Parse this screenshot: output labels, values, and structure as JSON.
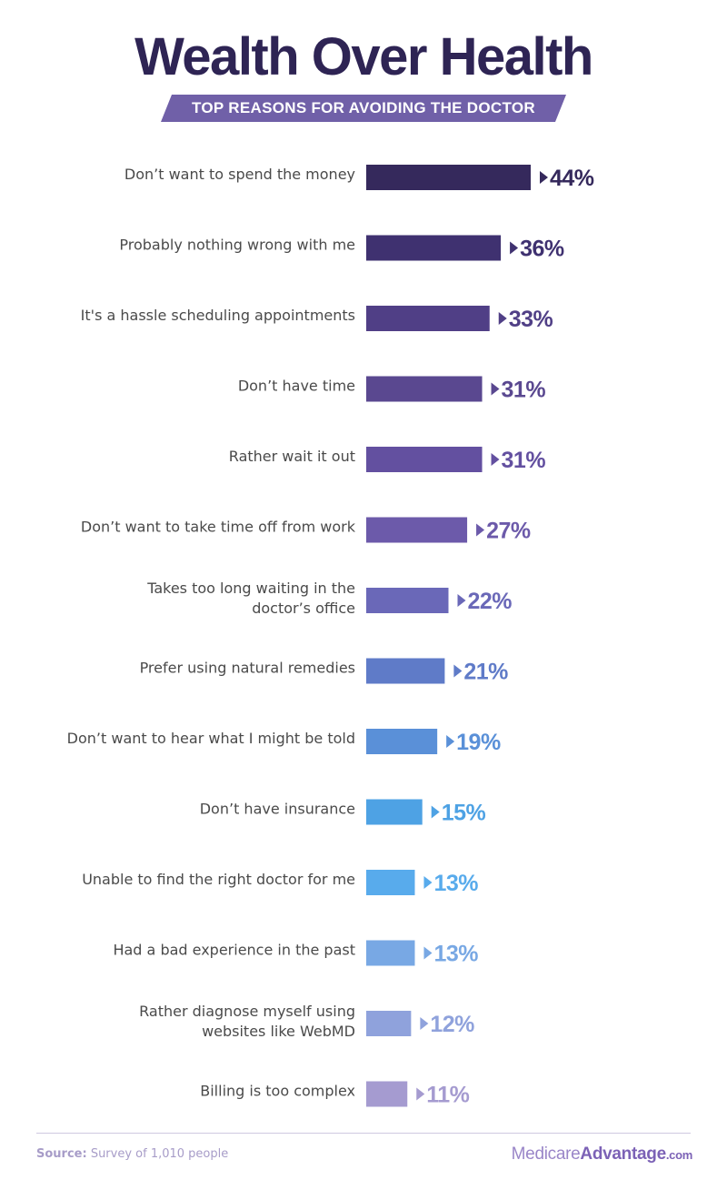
{
  "title": "Wealth Over Health",
  "subtitle": "TOP REASONS FOR AVOIDING THE DOCTOR",
  "chart_data": {
    "type": "bar",
    "orientation": "horizontal",
    "categories": [
      [
        "Don’t want to spend the money"
      ],
      [
        "Probably nothing wrong with me"
      ],
      [
        "It's a hassle scheduling appointments"
      ],
      [
        "Don’t have time"
      ],
      [
        "Rather wait it out"
      ],
      [
        "Don’t want to take time off from work"
      ],
      [
        "Takes too long waiting in the",
        "doctor’s office"
      ],
      [
        "Prefer using natural remedies"
      ],
      [
        "Don’t want to hear what I might be told"
      ],
      [
        "Don’t have insurance"
      ],
      [
        "Unable to find the right doctor for me"
      ],
      [
        "Had a bad experience in the past"
      ],
      [
        "Rather diagnose myself using",
        "websites like WebMD"
      ],
      [
        "Billing is too complex"
      ]
    ],
    "values": [
      44,
      36,
      33,
      31,
      31,
      27,
      22,
      21,
      19,
      15,
      13,
      13,
      12,
      11
    ],
    "value_labels": [
      "44%",
      "36%",
      "33%",
      "31%",
      "31%",
      "27%",
      "22%",
      "21%",
      "19%",
      "15%",
      "13%",
      "13%",
      "12%",
      "11%"
    ],
    "colors": [
      "#35295c",
      "#3f3170",
      "#503f86",
      "#5a4890",
      "#6350a0",
      "#6c5aaa",
      "#6a68b8",
      "#5f7bc8",
      "#5a90d8",
      "#4ea2e4",
      "#58abec",
      "#78a8e4",
      "#8fa2dc",
      "#a59bd0"
    ],
    "unit": "%"
  },
  "footer": {
    "source_label": "Source:",
    "source_text": " Survey of 1,010 people",
    "brand_part1": "Medicare",
    "brand_part2": "Advantage",
    "brand_part3": ".com"
  }
}
